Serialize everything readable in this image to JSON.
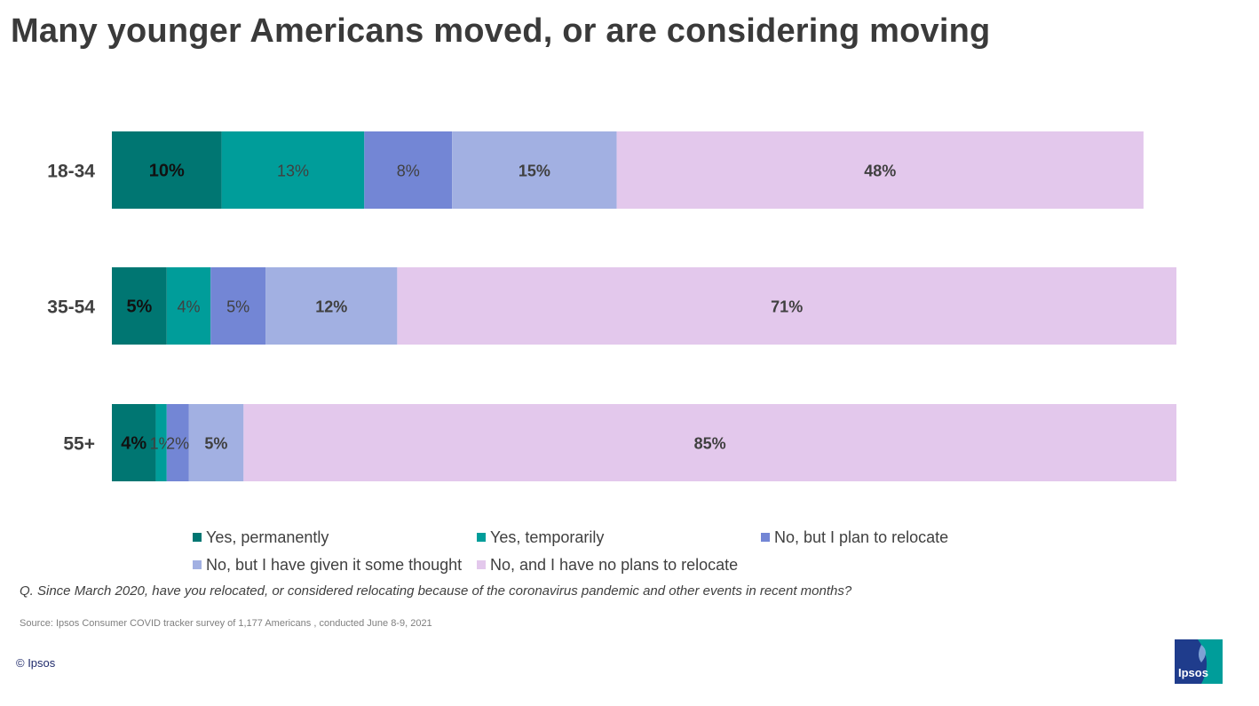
{
  "title": "Many younger Americans moved, or are considering moving",
  "chart_data": {
    "type": "bar",
    "orientation": "horizontal",
    "stacked": true,
    "categories": [
      "18-34",
      "35-54",
      "55+"
    ],
    "series": [
      {
        "name": "Yes, permanently",
        "color": "#007672",
        "values": [
          10,
          5,
          4
        ],
        "labels": [
          "10%",
          "5%",
          "4%"
        ]
      },
      {
        "name": "Yes, temporarily",
        "color": "#009d9a",
        "values": [
          13,
          4,
          1
        ],
        "labels": [
          "13%",
          "4%",
          "1%"
        ]
      },
      {
        "name": "No, but I plan to relocate",
        "color": "#7386d5",
        "values": [
          8,
          5,
          2
        ],
        "labels": [
          "8%",
          "5%",
          "2%"
        ]
      },
      {
        "name": "No, but I have given it some thought",
        "color": "#a2b0e2",
        "values": [
          15,
          12,
          5
        ],
        "labels": [
          "15%",
          "12%",
          "5%"
        ]
      },
      {
        "name": "No, and I have no plans to relocate",
        "color": "#e3c8ec",
        "values": [
          48,
          71,
          85
        ],
        "labels": [
          "48%",
          "71%",
          "85%"
        ]
      }
    ],
    "xlim": [
      0,
      97
    ],
    "legend_position": "bottom"
  },
  "question": "Q. Since March 2020, have you relocated, or considered relocating because of the coronavirus pandemic and other events in recent months?",
  "source": "Source: Ipsos Consumer COVID tracker survey of 1,177 Americans , conducted June 8-9, 2021",
  "copyright": "© Ipsos",
  "logo": {
    "text": "Ipsos",
    "colors": [
      "#1f3c8c",
      "#009d9a"
    ]
  }
}
